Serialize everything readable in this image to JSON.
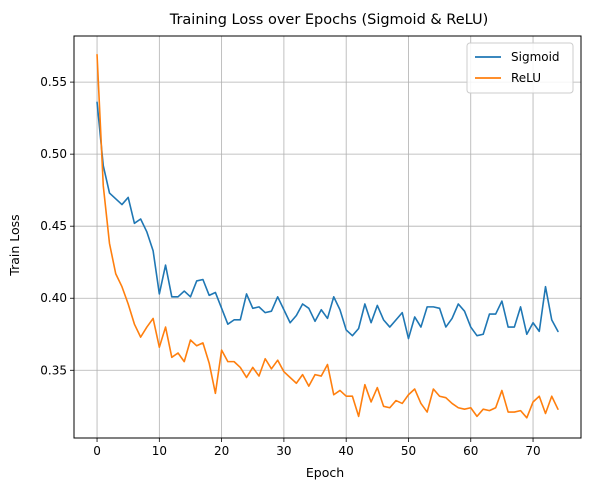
{
  "chart_data": {
    "type": "line",
    "title": "Training Loss over Epochs (Sigmoid & ReLU)",
    "xlabel": "Epoch",
    "ylabel": "Train Loss",
    "xlim": [
      -3.7,
      77.7
    ],
    "ylim": [
      0.303,
      0.582
    ],
    "xticks": [
      0,
      10,
      20,
      30,
      40,
      50,
      60,
      70
    ],
    "yticks": [
      0.35,
      0.4,
      0.45,
      0.5,
      0.55
    ],
    "ytick_labels": [
      "0.35",
      "0.40",
      "0.45",
      "0.50",
      "0.55"
    ],
    "grid": true,
    "legend_position": "top-right",
    "x": [
      0,
      1,
      2,
      3,
      4,
      5,
      6,
      7,
      8,
      9,
      10,
      11,
      12,
      13,
      14,
      15,
      16,
      17,
      18,
      19,
      20,
      21,
      22,
      23,
      24,
      25,
      26,
      27,
      28,
      29,
      30,
      31,
      32,
      33,
      34,
      35,
      36,
      37,
      38,
      39,
      40,
      41,
      42,
      43,
      44,
      45,
      46,
      47,
      48,
      49,
      50,
      51,
      52,
      53,
      54,
      55,
      56,
      57,
      58,
      59,
      60,
      61,
      62,
      63,
      64,
      65,
      66,
      67,
      68,
      69,
      70,
      71,
      72,
      73,
      74
    ],
    "series": [
      {
        "name": "Sigmoid",
        "color": "#1f77b4",
        "values": [
          0.536,
          0.492,
          0.473,
          0.469,
          0.465,
          0.47,
          0.452,
          0.455,
          0.446,
          0.433,
          0.403,
          0.423,
          0.401,
          0.401,
          0.405,
          0.401,
          0.412,
          0.413,
          0.402,
          0.404,
          0.393,
          0.382,
          0.385,
          0.385,
          0.403,
          0.393,
          0.394,
          0.39,
          0.391,
          0.401,
          0.392,
          0.383,
          0.388,
          0.396,
          0.393,
          0.384,
          0.392,
          0.386,
          0.401,
          0.392,
          0.378,
          0.374,
          0.379,
          0.396,
          0.383,
          0.395,
          0.385,
          0.38,
          0.385,
          0.39,
          0.372,
          0.387,
          0.38,
          0.394,
          0.394,
          0.393,
          0.38,
          0.386,
          0.396,
          0.391,
          0.38,
          0.374,
          0.375,
          0.389,
          0.389,
          0.398,
          0.38,
          0.38,
          0.394,
          0.375,
          0.383,
          0.377,
          0.408,
          0.385,
          0.377
        ]
      },
      {
        "name": "ReLU",
        "color": "#ff7f0e",
        "values": [
          0.569,
          0.478,
          0.438,
          0.417,
          0.408,
          0.396,
          0.382,
          0.373,
          0.38,
          0.386,
          0.366,
          0.38,
          0.359,
          0.362,
          0.356,
          0.371,
          0.367,
          0.369,
          0.355,
          0.334,
          0.364,
          0.356,
          0.356,
          0.352,
          0.345,
          0.352,
          0.346,
          0.358,
          0.351,
          0.357,
          0.349,
          0.345,
          0.341,
          0.347,
          0.339,
          0.347,
          0.346,
          0.354,
          0.333,
          0.336,
          0.332,
          0.332,
          0.318,
          0.34,
          0.328,
          0.338,
          0.325,
          0.324,
          0.329,
          0.327,
          0.333,
          0.337,
          0.327,
          0.321,
          0.337,
          0.332,
          0.331,
          0.327,
          0.324,
          0.323,
          0.324,
          0.318,
          0.323,
          0.322,
          0.324,
          0.336,
          0.321,
          0.321,
          0.322,
          0.317,
          0.328,
          0.332,
          0.32,
          0.332,
          0.323
        ]
      }
    ]
  }
}
